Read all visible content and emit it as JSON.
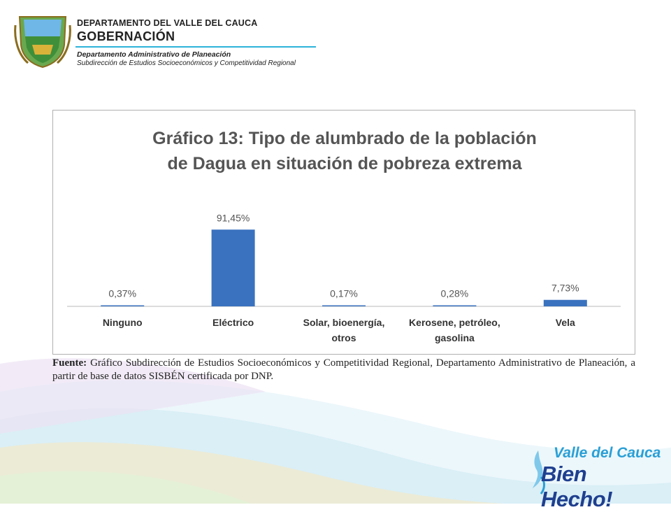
{
  "header": {
    "department": "DEPARTAMENTO DEL VALLE DEL CAUCA",
    "government": "GOBERNACIÓN",
    "sub1": "Departamento  Administrativo de Planeación",
    "sub2": "Subdirección de Estudios Socioeconómicos y Competitividad Regional"
  },
  "chart_data": {
    "type": "bar",
    "title_line1": "Gráfico 13: Tipo de alumbrado de la población",
    "title_line2": "de Dagua en situación de pobreza extrema",
    "categories": [
      [
        "Ninguno"
      ],
      [
        "Eléctrico"
      ],
      [
        "Solar, bioenergía,",
        "otros"
      ],
      [
        "Kerosene, petróleo,",
        "gasolina"
      ],
      [
        "Vela"
      ]
    ],
    "values": [
      0.37,
      91.45,
      0.17,
      0.28,
      7.73
    ],
    "value_labels": [
      "0,37%",
      "91,45%",
      "0,17%",
      "0,28%",
      "7,73%"
    ],
    "ylim": [
      0,
      100
    ],
    "bar_color": "#3a72bf",
    "grid": false,
    "legend": "none"
  },
  "source": {
    "label": "Fuente:",
    "text": "Gráfico Subdirección de Estudios Socioeconómicos y Competitividad Regional, Departamento Administrativo de Planeación, a partir de base de datos SISBÉN certificada por DNP."
  },
  "logo": {
    "line1": "Valle del Cauca",
    "line2": "Bien Hecho!"
  },
  "colors": {
    "accent_line": "#2db3d9",
    "logo_blue": "#2a9fd6",
    "logo_dark": "#1f3f8f"
  }
}
